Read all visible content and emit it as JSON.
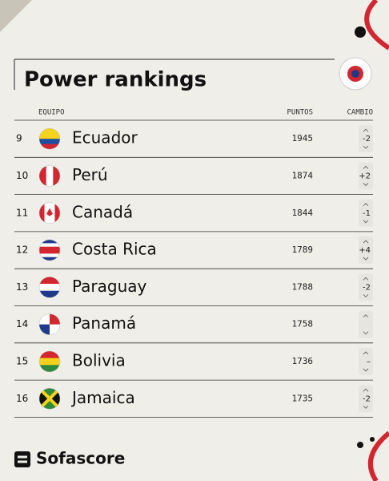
{
  "header": {
    "title": "Power rankings"
  },
  "table": {
    "columns": [
      "EQUIPO",
      "PUNTOS",
      "CAMBIO"
    ],
    "rows": [
      {
        "rank": 9,
        "team": "Ecuador",
        "points": 1945,
        "change": "-2"
      },
      {
        "rank": 10,
        "team": "Perú",
        "points": 1874,
        "change": "+2"
      },
      {
        "rank": 11,
        "team": "Canadá",
        "points": 1844,
        "change": "-1"
      },
      {
        "rank": 12,
        "team": "Costa Rica",
        "points": 1789,
        "change": "+4"
      },
      {
        "rank": 13,
        "team": "Paraguay",
        "points": 1788,
        "change": "-2"
      },
      {
        "rank": 14,
        "team": "Panamá",
        "points": 1758
      },
      {
        "rank": 15,
        "team": "Bolivia",
        "points": 1736,
        "change": "–"
      },
      {
        "rank": 16,
        "team": "Jamaica",
        "points": 1735,
        "change": "-2"
      }
    ]
  },
  "footer": {
    "brand": "Sofascore"
  }
}
